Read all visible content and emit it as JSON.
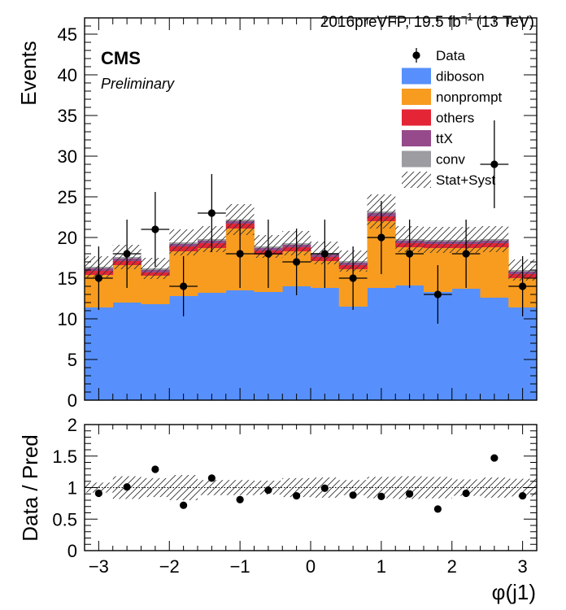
{
  "header": {
    "lumi_label": "2016preVFP, 19.5 fb",
    "lumi_exp": "−1",
    "energy": "(13 TeV)"
  },
  "labels": {
    "experiment": "CMS",
    "status": "Preliminary"
  },
  "colors": {
    "diboson": "#5790fc",
    "nonprompt": "#f89c20",
    "others": "#e42536",
    "ttX": "#964a8b",
    "conv": "#9c9ca1",
    "data": "#000000"
  },
  "chart_data": [
    {
      "type": "bar",
      "stacked": true,
      "xlabel": "φ(j1)",
      "ylabel": "Events",
      "xlim": [
        -3.2,
        3.2
      ],
      "ylim": [
        0,
        47
      ],
      "xticks": [
        -3,
        -2,
        -1,
        0,
        1,
        2,
        3
      ],
      "yticks": [
        0,
        5,
        10,
        15,
        20,
        25,
        30,
        35,
        40,
        45
      ],
      "bin_edges": [
        -3.2,
        -2.8,
        -2.4,
        -2.0,
        -1.6,
        -1.2,
        -0.8,
        -0.4,
        0.0,
        0.4,
        0.8,
        1.2,
        1.6,
        2.0,
        2.4,
        2.8,
        3.2
      ],
      "legend_position": "top-right",
      "series": [
        {
          "name": "diboson",
          "values": [
            11.4,
            12.0,
            11.8,
            12.8,
            13.2,
            13.5,
            13.3,
            14.0,
            13.8,
            11.5,
            13.8,
            14.1,
            13.3,
            13.7,
            12.6,
            11.4
          ]
        },
        {
          "name": "nonprompt",
          "values": [
            4.0,
            4.6,
            3.5,
            5.5,
            5.5,
            7.6,
            4.6,
            4.3,
            3.3,
            4.6,
            8.2,
            4.7,
            5.4,
            5.0,
            6.2,
            3.6
          ]
        },
        {
          "name": "others",
          "values": [
            0.5,
            0.5,
            0.4,
            0.6,
            0.6,
            0.6,
            0.5,
            0.5,
            0.5,
            0.5,
            0.6,
            0.5,
            0.5,
            0.5,
            0.5,
            0.5
          ]
        },
        {
          "name": "ttX",
          "values": [
            0.3,
            0.3,
            0.3,
            0.3,
            0.3,
            0.3,
            0.3,
            0.3,
            0.3,
            0.3,
            0.4,
            0.3,
            0.3,
            0.3,
            0.3,
            0.3
          ]
        },
        {
          "name": "conv",
          "values": [
            0.2,
            0.2,
            0.2,
            0.2,
            0.2,
            0.2,
            0.2,
            0.2,
            0.2,
            0.2,
            0.2,
            0.2,
            0.2,
            0.2,
            0.2,
            0.2
          ]
        }
      ],
      "unc_band": {
        "name": "Stat+Syst",
        "values": [
          1.3,
          1.5,
          1.3,
          1.6,
          1.6,
          1.9,
          1.4,
          1.5,
          1.4,
          1.3,
          2.1,
          1.6,
          1.6,
          1.6,
          1.6,
          1.3
        ]
      },
      "data": {
        "name": "Data",
        "x": [
          -3.0,
          -2.6,
          -2.2,
          -1.8,
          -1.4,
          -1.0,
          -0.6,
          -0.2,
          0.2,
          0.6,
          1.0,
          1.4,
          1.8,
          2.2,
          2.6,
          3.0
        ],
        "y": [
          15,
          18,
          21,
          14,
          23,
          18,
          18,
          17,
          18,
          15,
          20,
          18,
          13,
          18,
          29,
          14
        ],
        "yerr": [
          3.9,
          4.2,
          4.6,
          3.7,
          4.8,
          4.2,
          4.2,
          4.1,
          4.2,
          3.9,
          4.5,
          4.2,
          3.6,
          4.2,
          5.4,
          3.7
        ]
      }
    },
    {
      "type": "scatter",
      "xlabel": "φ(j1)",
      "ylabel": "Data / Pred",
      "xlim": [
        -3.2,
        3.2
      ],
      "ylim": [
        0,
        2
      ],
      "xticks": [
        -3,
        -2,
        -1,
        0,
        1,
        2,
        3
      ],
      "yticks": [
        0,
        0.5,
        1,
        1.5,
        2
      ],
      "ratio": [
        0.91,
        1.01,
        1.29,
        0.72,
        1.15,
        0.81,
        0.96,
        0.87,
        0.99,
        0.88,
        0.86,
        0.9,
        0.66,
        0.91,
        1.47,
        0.87
      ],
      "band": [
        0.08,
        0.09,
        0.08,
        0.08,
        0.08,
        0.09,
        0.08,
        0.08,
        0.08,
        0.08,
        0.09,
        0.08,
        0.08,
        0.08,
        0.08,
        0.08
      ],
      "band_visual": [
        0.08,
        0.18,
        0.15,
        0.2,
        0.12,
        0.12,
        0.11,
        0.15,
        0.16,
        0.12,
        0.17,
        0.18,
        0.17,
        0.13,
        0.16,
        0.14
      ]
    }
  ]
}
